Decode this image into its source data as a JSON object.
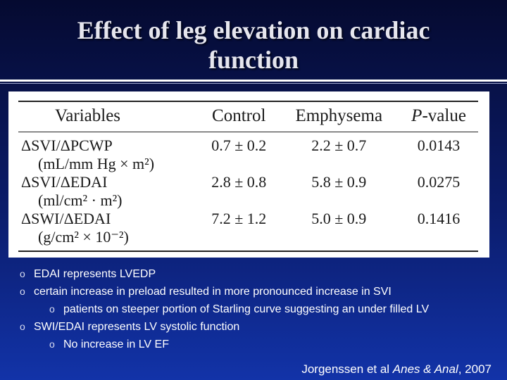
{
  "slide": {
    "title_line1": "Effect of leg elevation on cardiac",
    "title_line2": "function"
  },
  "table": {
    "headers": {
      "variables": "Variables",
      "control": "Control",
      "emphysema": "Emphysema",
      "p_letter": "P",
      "p_rest": "-value"
    },
    "rows": [
      {
        "variable": "ΔSVI/ΔPCWP",
        "unit": "(mL/mm Hg × m²)",
        "control": "0.7 ± 0.2",
        "emphysema": "2.2 ± 0.7",
        "p_value": "0.0143"
      },
      {
        "variable": "ΔSVI/ΔEDAI",
        "unit": "(ml/cm² · m²)",
        "control": "2.8 ± 0.8",
        "emphysema": "5.8 ± 0.9",
        "p_value": "0.0275"
      },
      {
        "variable": "ΔSWI/ΔEDAI",
        "unit": "(g/cm² × 10⁻²)",
        "control": "7.2 ± 1.2",
        "emphysema": "5.0 ± 0.9",
        "p_value": "0.1416"
      }
    ]
  },
  "bullets": [
    {
      "level": 1,
      "marker": "o",
      "text": "EDAI represents LVEDP"
    },
    {
      "level": 1,
      "marker": "o",
      "text": "certain increase in preload resulted in more pronounced increase in SVI"
    },
    {
      "level": 2,
      "marker": "o",
      "text": "patients on steeper portion of Starling curve suggesting an under filled LV"
    },
    {
      "level": 1,
      "marker": "o",
      "text": "SWI/EDAI represents LV systolic function"
    },
    {
      "level": 2,
      "marker": "o",
      "text": "No increase in LV EF"
    }
  ],
  "citation": {
    "authors": "Jorgenssen et al ",
    "journal": "Anes & Anal",
    "year": ", 2007"
  }
}
